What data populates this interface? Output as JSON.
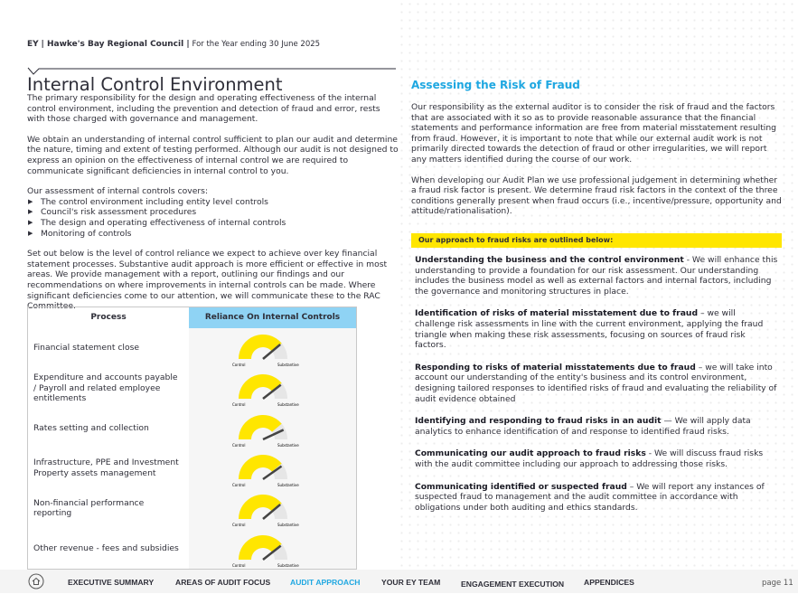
{
  "header": {
    "brand": "EY",
    "council": "| Hawke's Bay Regional Council |",
    "period": "For the Year ending 30 June 2025"
  },
  "left": {
    "title": "Internal Control Environment",
    "paragraphs": [
      "The primary responsibility for the design and operating effectiveness of the internal control environment, including the prevention and detection of fraud and error, rests with those charged with governance and management.",
      "We obtain an understanding of internal control sufficient to plan our audit and determine the nature, timing and extent of testing performed. Although our audit is not designed to express an opinion on the effectiveness of internal control we are required to communicate significant deficiencies in internal control to you.",
      "Our assessment of internal controls covers:"
    ],
    "bullets": [
      "The control environment including entity level controls",
      "Council's risk assessment procedures",
      "The design and operating effectiveness of internal controls",
      "Monitoring of controls"
    ],
    "closing": "Set out below is the level of control reliance we expect to achieve over key financial statement processes. Substantive audit approach is more efficient or effective in most areas. We provide management with a report, outlining our findings and our recommendations on where improvements in internal controls can be made. Where significant deficiencies come to our attention, we will communicate these to the RAC Committee.",
    "table": {
      "headers": [
        "Process",
        "Reliance On Internal Controls"
      ],
      "gauge_labels": [
        "Control",
        "Substantive"
      ],
      "rows": [
        "Financial statement close",
        "Expenditure and accounts payable / Payroll and related employee entitlements",
        "Rates setting and collection",
        "Infrastructure, PPE and Investment Property assets management",
        "Non-financial performance reporting",
        "Other revenue - fees and subsidies"
      ]
    }
  },
  "right": {
    "title": "Assessing the Risk of Fraud",
    "paragraphs": [
      "Our responsibility as the external auditor is to consider the risk of fraud and the factors that are associated with it so as to provide reasonable assurance that the financial statements and performance information are free from material misstatement resulting from fraud. However, it is important to note that while our external audit work is not primarily directed towards the detection of fraud or other irregularities, we will report any matters identified during the course of our work.",
      "When developing our Audit Plan we use professional judgement in determining whether a fraud risk factor is present. We determine fraud risk factors in the context of the three conditions generally present when fraud occurs (i.e., incentive/pressure, opportunity and attitude/rationalisation)."
    ],
    "banner": "Our approach to fraud risks are outlined below:",
    "items": [
      {
        "lead": "Understanding the business and the control environment",
        "text": " - We will enhance this understanding to provide a foundation for our risk assessment. Our understanding includes the business model as well as external factors and internal factors, including the governance and monitoring structures in place."
      },
      {
        "lead": "Identification of risks of material misstatement due to fraud",
        "text": " – we will challenge risk assessments in line with the current environment, applying the fraud triangle when making these risk assessments, focusing on sources of fraud risk factors."
      },
      {
        "lead": "Responding to risks of material misstatements due to fraud",
        "text": " – we will take into account our understanding of the entity's business and its control environment, designing tailored responses to identified risks of fraud and evaluating the reliability of audit evidence obtained"
      },
      {
        "lead": "Identifying and responding to fraud risks in an audit",
        "text": " — We will apply data analytics to enhance identification of and response to identified fraud risks."
      },
      {
        "lead": "Communicating our audit approach to fraud risks",
        "text": " - We will discuss fraud risks with the audit committee including our approach to addressing those risks."
      },
      {
        "lead": "Communicating identified or suspected fraud",
        "text": " – We will report any instances of suspected fraud to management and the audit committee in accordance with obligations under both auditing and ethics standards."
      }
    ]
  },
  "nav": {
    "items": [
      "EXECUTIVE SUMMARY",
      "AREAS OF AUDIT FOCUS",
      "AUDIT APPROACH",
      "YOUR EY TEAM",
      "ENGAGEMENT EXECUTION",
      "APPENDICES"
    ],
    "page": "page 11"
  }
}
